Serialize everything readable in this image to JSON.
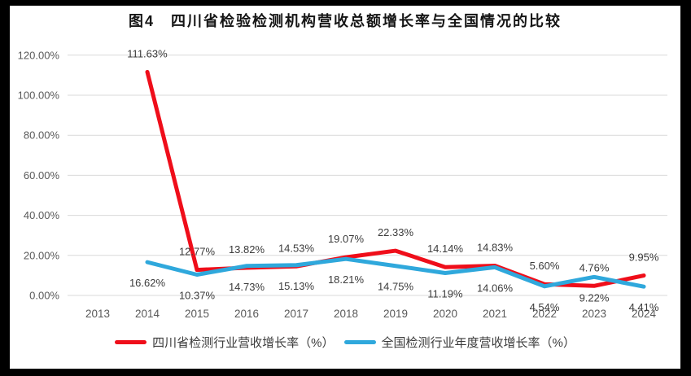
{
  "window": {
    "background": "#ffffff",
    "frame_color": "#000000"
  },
  "chart_data": {
    "type": "line",
    "title": "图4　四川省检验检测机构营收总额增长率与全国情况的比较",
    "categories": [
      "2013",
      "2014",
      "2015",
      "2016",
      "2017",
      "2018",
      "2019",
      "2020",
      "2021",
      "2022",
      "2023",
      "2024"
    ],
    "series": [
      {
        "name": "四川省检测行业营收增长率（%）",
        "color": "#EF0E1A",
        "label_position": "above",
        "values": [
          null,
          111.63,
          12.77,
          13.82,
          14.53,
          19.07,
          22.33,
          14.14,
          14.83,
          5.6,
          4.76,
          9.95
        ]
      },
      {
        "name": "全国检测行业年度营收增长率（%）",
        "color": "#2FA8DC",
        "label_position": "below",
        "values": [
          null,
          16.62,
          10.37,
          14.73,
          15.13,
          18.21,
          14.75,
          11.19,
          14.06,
          4.54,
          9.22,
          4.41
        ]
      }
    ],
    "y_ticks": [
      "120.00%",
      "100.00%",
      "80.00%",
      "60.00%",
      "40.00%",
      "20.00%",
      "0.00%"
    ],
    "ylim": [
      0,
      120
    ],
    "y_step": 20,
    "grid": true,
    "grid_color": "#D9D9D9",
    "axis_label_color": "#595959",
    "data_label_color": "#3b3b3b",
    "legend_position": "bottom",
    "xlabel": "",
    "ylabel": ""
  }
}
